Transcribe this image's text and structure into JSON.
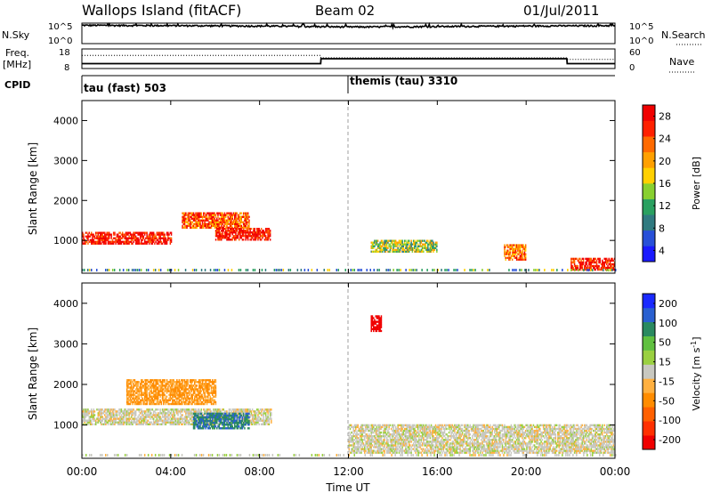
{
  "header": {
    "station": "Wallops Island (fitACF)",
    "beam": "Beam 02",
    "date": "01/Jul/2011"
  },
  "left_labels": {
    "nsky": "N.Sky",
    "freq_line1": "Freq.",
    "freq_line2": "[MHz]",
    "cpid": "CPID"
  },
  "right_labels": {
    "nsearch": "N.Search",
    "nave": "Nave"
  },
  "noise_panel": {
    "left_ticks": [
      "10^5",
      "10^0"
    ],
    "right_ticks": [
      "10^5",
      "10^0"
    ]
  },
  "freq_panel": {
    "left_ticks": [
      "18",
      "8"
    ],
    "right_ticks": [
      "60",
      "0"
    ]
  },
  "cpid_panel": {
    "labels": [
      {
        "text": "tau (fast) 503",
        "start": "00:00"
      },
      {
        "text": "themis (tau) 3310",
        "start": "12:00"
      }
    ]
  },
  "power_colorbar": {
    "label": "Power [dB]",
    "ticks": [
      "4",
      "8",
      "12",
      "16",
      "20",
      "24",
      "28"
    ],
    "colors": [
      "#1a1aff",
      "#2850d8",
      "#307a80",
      "#2aa060",
      "#88d030",
      "#ffd000",
      "#ffa000",
      "#ff6a00",
      "#ff2000",
      "#f00000"
    ]
  },
  "velocity_colorbar": {
    "label": "Velocity [m s-1]",
    "ticks": [
      "200",
      "100",
      "50",
      "15",
      "-15",
      "-50",
      "-100",
      "-200"
    ],
    "colors": [
      "#1a2aff",
      "#2a60d0",
      "#2a8a60",
      "#60c040",
      "#9ad040",
      "#c8c8c0",
      "#ffb040",
      "#ff8c00",
      "#ff6000",
      "#ff3000",
      "#f00000"
    ]
  },
  "x_axis": {
    "label": "Time UT",
    "ticks": [
      "00:00",
      "04:00",
      "08:00",
      "12:00",
      "16:00",
      "20:00",
      "00:00"
    ]
  },
  "chart_data": [
    {
      "type": "line",
      "title": "N.Sky / N.Search",
      "ylabel": "N.Sky",
      "y_scale": "log",
      "ylim": [
        1,
        100000
      ],
      "x": [
        "00:00",
        "04:00",
        "08:00",
        "12:00",
        "16:00",
        "20:00",
        "24:00"
      ],
      "series": [
        {
          "name": "N.Sky",
          "values": [
            30000,
            25000,
            20000,
            12000,
            15000,
            20000,
            25000
          ]
        }
      ]
    },
    {
      "type": "line",
      "ylabel": "Freq. [MHz]",
      "ylim": [
        8,
        18
      ],
      "right_ylim": [
        0,
        60
      ],
      "x": [
        "00:00",
        "10:45",
        "10:46",
        "21:50",
        "21:51",
        "24:00"
      ],
      "series": [
        {
          "name": "Freq.",
          "values": [
            10.5,
            10.5,
            13,
            13,
            10.5,
            10.5
          ]
        },
        {
          "name": "Nave",
          "values": [
            40,
            40,
            33,
            33,
            28,
            28
          ]
        }
      ]
    },
    {
      "type": "heatmap",
      "title": "Power [dB]",
      "xlabel": "Time UT",
      "ylabel": "Slant Range [km]",
      "xlim": [
        0,
        24
      ],
      "ylim": [
        180,
        4500
      ],
      "colorbar_range": [
        0,
        30
      ],
      "regions": [
        {
          "t0": 0.0,
          "t1": 4.0,
          "r0": 900,
          "r1": 1200,
          "dB": 28
        },
        {
          "t0": 4.5,
          "t1": 7.5,
          "r0": 1300,
          "r1": 1700,
          "dB": 24
        },
        {
          "t0": 6.0,
          "t1": 8.5,
          "r0": 1000,
          "r1": 1300,
          "dB": 28
        },
        {
          "t0": 22.0,
          "t1": 24.0,
          "r0": 250,
          "r1": 550,
          "dB": 28
        },
        {
          "t0": 19.0,
          "t1": 20.0,
          "r0": 500,
          "r1": 900,
          "dB": 22
        },
        {
          "t0": 13.0,
          "t1": 16.0,
          "r0": 700,
          "r1": 1000,
          "dB": 14
        }
      ]
    },
    {
      "type": "heatmap",
      "title": "Velocity [m s-1]",
      "xlabel": "Time UT",
      "ylabel": "Slant Range [km]",
      "xlim": [
        0,
        24
      ],
      "ylim": [
        180,
        4500
      ],
      "colorbar_range": [
        -200,
        200
      ],
      "regions": [
        {
          "t0": 0.0,
          "t1": 8.5,
          "r0": 1000,
          "r1": 1400,
          "ms": 0
        },
        {
          "t0": 5.0,
          "t1": 7.5,
          "r0": 900,
          "r1": 1300,
          "ms": 120
        },
        {
          "t0": 2.0,
          "t1": 6.0,
          "r0": 1500,
          "r1": 2100,
          "ms": -60
        },
        {
          "t0": 12.0,
          "t1": 24.0,
          "r0": 300,
          "r1": 1000,
          "ms": 0
        },
        {
          "t0": 13.0,
          "t1": 13.5,
          "r0": 3300,
          "r1": 3700,
          "ms": -200
        }
      ]
    }
  ]
}
